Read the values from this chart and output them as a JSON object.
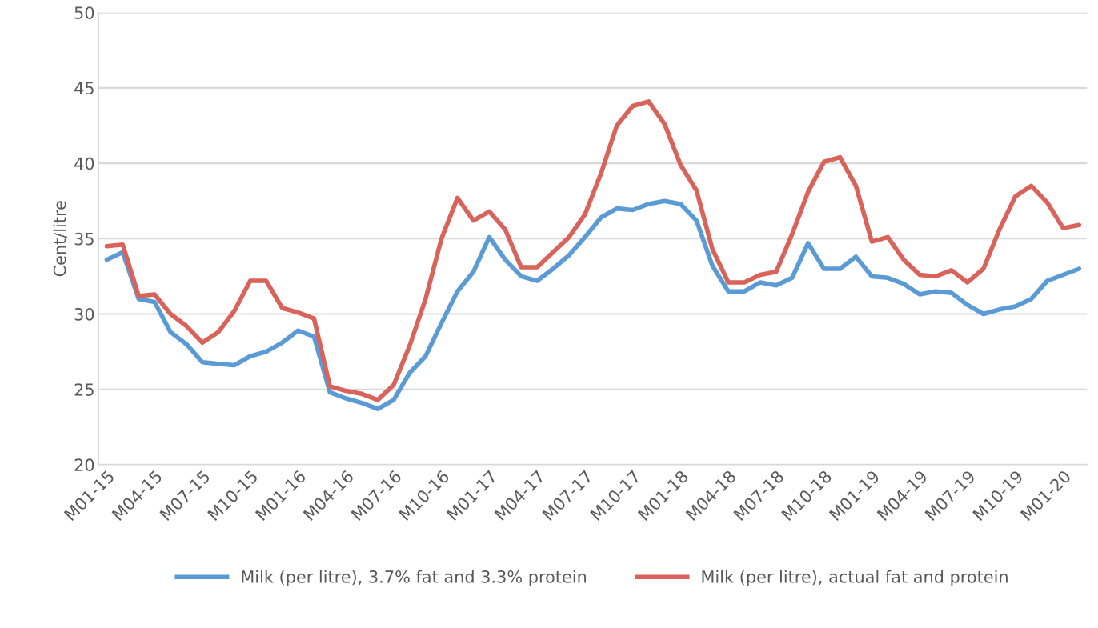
{
  "chart_data": {
    "type": "line",
    "ylabel": "Cent/litre",
    "categories": [
      "M01-15",
      null,
      null,
      "M04-15",
      null,
      null,
      "M07-15",
      null,
      null,
      "M10-15",
      null,
      null,
      "M01-16",
      null,
      null,
      "M04-16",
      null,
      null,
      "M07-16",
      null,
      null,
      "M10-16",
      null,
      null,
      "M01-17",
      null,
      null,
      "M04-17",
      null,
      null,
      "M07-17",
      null,
      null,
      "M10-17",
      null,
      null,
      "M01-18",
      null,
      null,
      "M04-18",
      null,
      null,
      "M07-18",
      null,
      null,
      "M10-18",
      null,
      null,
      "M01-19",
      null,
      null,
      "M04-19",
      null,
      null,
      "M07-19",
      null,
      null,
      "M10-19",
      null,
      null,
      "M01-20",
      null
    ],
    "series": [
      {
        "name": "Milk (per litre), 3.7% fat and 3.3% protein",
        "color": "#5b9bd5",
        "values": [
          33.6,
          34.1,
          31.0,
          30.8,
          28.8,
          28.0,
          26.8,
          26.7,
          26.6,
          27.2,
          27.5,
          28.1,
          28.9,
          28.5,
          24.8,
          24.4,
          24.1,
          23.7,
          24.3,
          26.1,
          27.2,
          29.4,
          31.5,
          32.8,
          35.1,
          33.6,
          32.5,
          32.2,
          33.0,
          33.9,
          35.1,
          36.4,
          37.0,
          36.9,
          37.3,
          37.5,
          37.3,
          36.2,
          33.2,
          31.5,
          31.5,
          32.1,
          31.9,
          32.4,
          34.7,
          33.0,
          33.0,
          33.8,
          32.5,
          32.4,
          32.0,
          31.3,
          31.5,
          31.4,
          30.6,
          30.0,
          30.3,
          30.5,
          31.0,
          32.2,
          32.6,
          33.0
        ]
      },
      {
        "name": "Milk (per litre), actual fat and protein",
        "color": "#d9625a",
        "values": [
          34.5,
          34.6,
          31.2,
          31.3,
          30.0,
          29.2,
          28.1,
          28.8,
          30.2,
          32.2,
          32.2,
          30.4,
          30.1,
          29.7,
          25.2,
          24.9,
          24.7,
          24.3,
          25.3,
          27.9,
          31.0,
          35.0,
          37.7,
          36.2,
          36.8,
          35.6,
          33.1,
          33.1,
          34.1,
          35.1,
          36.6,
          39.3,
          42.5,
          43.8,
          44.1,
          42.6,
          39.9,
          38.2,
          34.3,
          32.1,
          32.1,
          32.6,
          32.8,
          35.3,
          38.1,
          40.1,
          40.4,
          38.5,
          34.8,
          35.1,
          33.6,
          32.6,
          32.5,
          32.9,
          32.1,
          33.0,
          35.6,
          37.8,
          38.5,
          37.4,
          35.7,
          35.9
        ]
      }
    ],
    "ylim": [
      20,
      50
    ],
    "yticks": [
      20,
      25,
      30,
      35,
      40,
      45,
      50
    ],
    "grid": "y",
    "legend": "bottom",
    "marker": "none",
    "line_style": "solid"
  }
}
